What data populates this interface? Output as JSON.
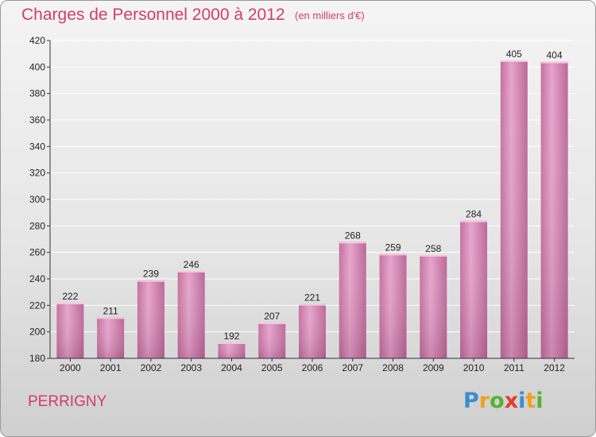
{
  "header": {
    "title": "Charges de Personnel 2000 à 2012",
    "subtitle": "(en milliers d'€)"
  },
  "footer": {
    "city": "PERRIGNY",
    "logo_letters": [
      "P",
      "r",
      "o",
      "x",
      "i",
      "t",
      "i"
    ],
    "logo_colors": [
      "#3a8fd0",
      "#f0a11f",
      "#55b32f",
      "#e53a2f",
      "#3a8fd0",
      "#f0a11f",
      "#55b32f"
    ]
  },
  "chart_data": {
    "type": "bar",
    "title": "Charges de Personnel 2000 à 2012",
    "subtitle": "(en milliers d'€)",
    "categories": [
      "2000",
      "2001",
      "2002",
      "2003",
      "2004",
      "2005",
      "2006",
      "2007",
      "2008",
      "2009",
      "2010",
      "2011",
      "2012"
    ],
    "values": [
      222,
      211,
      239,
      246,
      192,
      207,
      221,
      268,
      259,
      258,
      284,
      405,
      404
    ],
    "xlabel": "",
    "ylabel": "",
    "ylim": [
      180,
      420
    ],
    "yticks": [
      180,
      200,
      220,
      240,
      260,
      280,
      300,
      320,
      340,
      360,
      380,
      400,
      420
    ],
    "grid": true,
    "bar_color": "#d98bb8",
    "grid_color": "#ffffff"
  }
}
